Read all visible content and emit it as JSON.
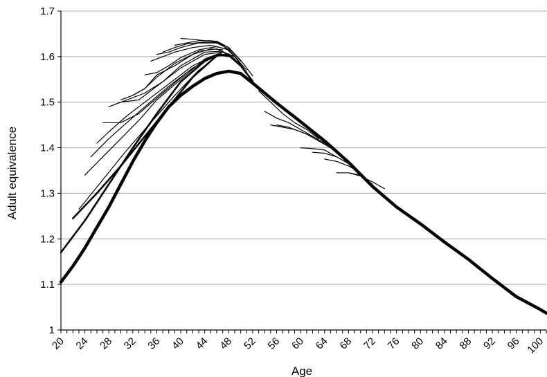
{
  "chart_data": {
    "type": "line",
    "title": "",
    "xlabel": "Age",
    "ylabel": "Adult equivalence",
    "xlim": [
      20,
      101
    ],
    "ylim": [
      1.0,
      1.7
    ],
    "x_ticks": [
      20,
      24,
      28,
      32,
      36,
      40,
      44,
      48,
      52,
      56,
      60,
      64,
      68,
      72,
      76,
      80,
      84,
      88,
      92,
      96,
      100
    ],
    "y_ticks": [
      1.0,
      1.1,
      1.2,
      1.3,
      1.4,
      1.5,
      1.6,
      1.7
    ],
    "y_tick_labels": [
      "1",
      "1.1",
      "1.2",
      "1.3",
      "1.4",
      "1.5",
      "1.6",
      "1.7"
    ],
    "grid": "horizontal",
    "legend": "none",
    "colors": {
      "line": "#000000",
      "grid": "#a6a6a6",
      "axis": "#000000"
    },
    "series": [
      {
        "weight": "heavy",
        "x": [
          20,
          22,
          24,
          26,
          28,
          30,
          32,
          34,
          36,
          38,
          40,
          42,
          44,
          46,
          48,
          50,
          52,
          56,
          60,
          64,
          68,
          72,
          76,
          80,
          84,
          88,
          92,
          96,
          100,
          101
        ],
        "y": [
          1.105,
          1.14,
          1.18,
          1.225,
          1.27,
          1.32,
          1.37,
          1.415,
          1.455,
          1.49,
          1.515,
          1.535,
          1.552,
          1.563,
          1.568,
          1.563,
          1.542,
          1.498,
          1.457,
          1.415,
          1.368,
          1.315,
          1.27,
          1.233,
          1.193,
          1.155,
          1.113,
          1.073,
          1.045,
          1.037
        ]
      },
      {
        "weight": "medium",
        "x": [
          20,
          24,
          28,
          32,
          36,
          40,
          44,
          46,
          48,
          50,
          52
        ],
        "y": [
          1.17,
          1.24,
          1.32,
          1.4,
          1.475,
          1.545,
          1.59,
          1.603,
          1.603,
          1.58,
          1.546
        ]
      },
      {
        "weight": "medium",
        "x": [
          22,
          26,
          30,
          34,
          38,
          42,
          46,
          48,
          50
        ],
        "y": [
          1.245,
          1.3,
          1.36,
          1.425,
          1.49,
          1.555,
          1.602,
          1.605,
          1.58
        ]
      },
      {
        "weight": "thin",
        "x": [
          23,
          27,
          31,
          35,
          39,
          43,
          47,
          49,
          51
        ],
        "y": [
          1.265,
          1.33,
          1.395,
          1.455,
          1.515,
          1.57,
          1.61,
          1.6,
          1.565
        ]
      },
      {
        "weight": "thin",
        "x": [
          24,
          27,
          30,
          33,
          36,
          40,
          44,
          47,
          49
        ],
        "y": [
          1.34,
          1.38,
          1.42,
          1.46,
          1.505,
          1.55,
          1.595,
          1.61,
          1.595
        ]
      },
      {
        "weight": "thin",
        "x": [
          25,
          28,
          31,
          34,
          38,
          42,
          46,
          48
        ],
        "y": [
          1.38,
          1.42,
          1.455,
          1.49,
          1.535,
          1.575,
          1.605,
          1.605
        ]
      },
      {
        "weight": "thin",
        "x": [
          26,
          28,
          31,
          34,
          38,
          42,
          46,
          48
        ],
        "y": [
          1.41,
          1.435,
          1.47,
          1.5,
          1.54,
          1.58,
          1.605,
          1.6
        ]
      },
      {
        "weight": "thin",
        "x": [
          27,
          30,
          33,
          37,
          41,
          45,
          48
        ],
        "y": [
          1.455,
          1.455,
          1.475,
          1.52,
          1.565,
          1.6,
          1.605
        ]
      },
      {
        "weight": "thin",
        "x": [
          28,
          30,
          33,
          36,
          40,
          44,
          47
        ],
        "y": [
          1.49,
          1.5,
          1.505,
          1.535,
          1.575,
          1.605,
          1.61
        ]
      },
      {
        "weight": "thin",
        "x": [
          29,
          31,
          34,
          37,
          40,
          44,
          47
        ],
        "y": [
          1.495,
          1.505,
          1.52,
          1.545,
          1.58,
          1.61,
          1.612
        ]
      },
      {
        "weight": "thin",
        "x": [
          30,
          32,
          34,
          36,
          39,
          43,
          46,
          48
        ],
        "y": [
          1.505,
          1.515,
          1.53,
          1.555,
          1.585,
          1.612,
          1.617,
          1.605
        ]
      },
      {
        "weight": "thin",
        "x": [
          32,
          34,
          36,
          39,
          42,
          45,
          47
        ],
        "y": [
          1.515,
          1.53,
          1.56,
          1.58,
          1.605,
          1.617,
          1.615
        ]
      },
      {
        "weight": "thin",
        "x": [
          34,
          36,
          38,
          40,
          43,
          46,
          48
        ],
        "y": [
          1.56,
          1.565,
          1.58,
          1.598,
          1.615,
          1.622,
          1.615
        ]
      },
      {
        "weight": "thin",
        "x": [
          35,
          37,
          39,
          42,
          45,
          48,
          50
        ],
        "y": [
          1.59,
          1.6,
          1.61,
          1.62,
          1.625,
          1.615,
          1.585
        ]
      },
      {
        "weight": "thin",
        "x": [
          36,
          38,
          40,
          43,
          46,
          48,
          50
        ],
        "y": [
          1.605,
          1.61,
          1.62,
          1.63,
          1.63,
          1.617,
          1.585
        ]
      },
      {
        "weight": "thin",
        "x": [
          37,
          39,
          41,
          44,
          46,
          48,
          50
        ],
        "y": [
          1.61,
          1.62,
          1.628,
          1.632,
          1.632,
          1.62,
          1.59
        ]
      },
      {
        "weight": "thin",
        "x": [
          39,
          41,
          43,
          45,
          47,
          49,
          51
        ],
        "y": [
          1.625,
          1.63,
          1.635,
          1.635,
          1.625,
          1.6,
          1.57
        ]
      },
      {
        "weight": "thin",
        "x": [
          40,
          42,
          44,
          46,
          48,
          50,
          52
        ],
        "y": [
          1.64,
          1.638,
          1.635,
          1.634,
          1.62,
          1.592,
          1.558
        ]
      },
      {
        "weight": "thin",
        "x": [
          53,
          55,
          57,
          59,
          61,
          63
        ],
        "y": [
          1.525,
          1.5,
          1.475,
          1.455,
          1.44,
          1.42
        ]
      },
      {
        "weight": "thin",
        "x": [
          54,
          56,
          58,
          60,
          62,
          64
        ],
        "y": [
          1.48,
          1.465,
          1.455,
          1.44,
          1.425,
          1.41
        ]
      },
      {
        "weight": "thin",
        "x": [
          55,
          57,
          59,
          61,
          63,
          65
        ],
        "y": [
          1.45,
          1.445,
          1.44,
          1.43,
          1.415,
          1.4
        ]
      },
      {
        "weight": "thin",
        "x": [
          56,
          58,
          60,
          62,
          64,
          66
        ],
        "y": [
          1.45,
          1.445,
          1.435,
          1.425,
          1.41,
          1.39
        ]
      },
      {
        "weight": "thin",
        "x": [
          60,
          62,
          64,
          66
        ],
        "y": [
          1.4,
          1.398,
          1.395,
          1.38
        ]
      },
      {
        "weight": "thin",
        "x": [
          62,
          64,
          66,
          68
        ],
        "y": [
          1.39,
          1.388,
          1.38,
          1.365
        ]
      },
      {
        "weight": "thin",
        "x": [
          64,
          66,
          68,
          70
        ],
        "y": [
          1.375,
          1.37,
          1.36,
          1.345
        ]
      },
      {
        "weight": "thin",
        "x": [
          66,
          68,
          70,
          72
        ],
        "y": [
          1.345,
          1.345,
          1.34,
          1.32
        ]
      },
      {
        "weight": "thin",
        "x": [
          68,
          70,
          72,
          74
        ],
        "y": [
          1.345,
          1.338,
          1.325,
          1.31
        ]
      }
    ]
  }
}
